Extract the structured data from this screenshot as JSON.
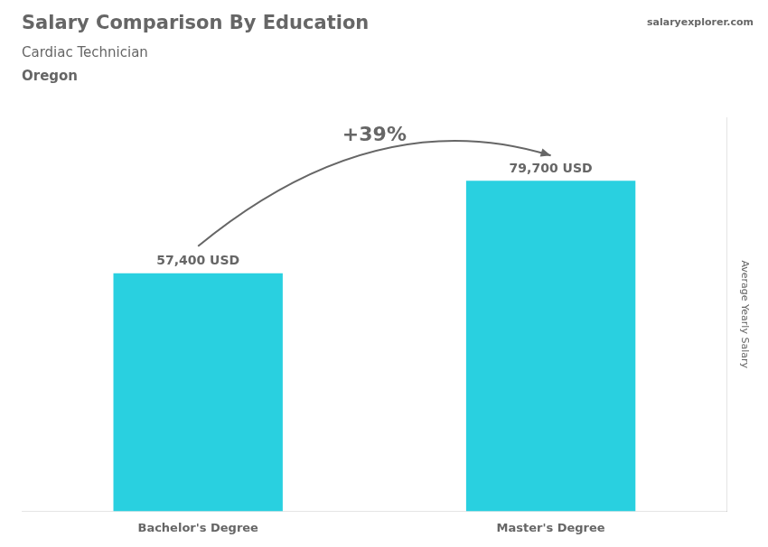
{
  "chart_data": {
    "type": "bar",
    "title": "Salary Comparison By Education",
    "subtitle": "Cardiac Technician",
    "annotations": [
      "Oregon",
      "salaryexplorer.com",
      "+39%"
    ],
    "ylabel": "Average Yearly Salary",
    "categories": [
      "Bachelor's Degree",
      "Master's Degree"
    ],
    "values": [
      57400,
      79700
    ],
    "value_labels": [
      "57,400 USD",
      "79,700 USD"
    ],
    "data_labels": true,
    "color": "#29d0e0",
    "ylim": [
      0,
      95000
    ],
    "grid": false,
    "tick_labels": "x"
  }
}
